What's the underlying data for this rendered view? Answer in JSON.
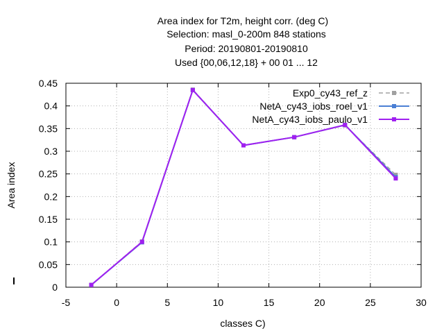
{
  "chart_data": {
    "type": "line",
    "title_lines": [
      "Area index  for T2m, height corr. (deg C)",
      "Selection: masl_0-200m    848 stations",
      "Period: 20190801-20190810",
      "Used {00,06,12,18} + 00 01 ... 12"
    ],
    "xlabel": "classes C)",
    "ylabel": "Area index",
    "xlim": [
      -5,
      30
    ],
    "ylim": [
      0,
      0.45
    ],
    "x_ticks": [
      "-5",
      "0",
      "5",
      "10",
      "15",
      "20",
      "25",
      "30"
    ],
    "y_ticks": [
      "0",
      "0.05",
      "0.1",
      "0.15",
      "0.2",
      "0.25",
      "0.3",
      "0.35",
      "0.4",
      "0.45"
    ],
    "grid": true,
    "legend_position": "top-right",
    "x": [
      -2.5,
      2.5,
      7.5,
      12.5,
      17.5,
      22.5,
      27.5
    ],
    "series": [
      {
        "name": "Exp0_cy43_ref_z",
        "color": "#a0a0a0",
        "dash": true,
        "values": [
          0.005,
          0.101,
          0.436,
          0.313,
          0.331,
          0.357,
          0.248
        ]
      },
      {
        "name": "NetA_cy43_iobs_roel_v1",
        "color": "#4a7fd4",
        "dash": false,
        "values": [
          0.005,
          0.099,
          0.435,
          0.313,
          0.331,
          0.358,
          0.243
        ]
      },
      {
        "name": "NetA_cy43_iobs_paulo_v1",
        "color": "#a020f0",
        "dash": false,
        "values": [
          0.005,
          0.1,
          0.435,
          0.313,
          0.331,
          0.358,
          0.24
        ]
      }
    ]
  }
}
